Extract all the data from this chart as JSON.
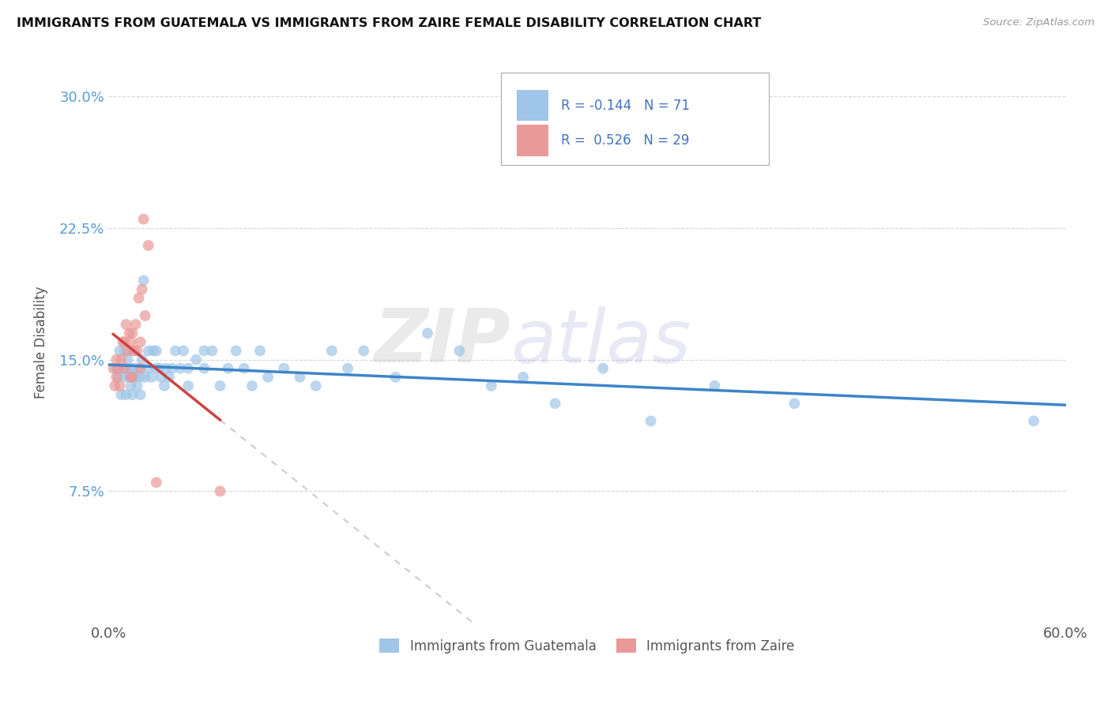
{
  "title": "IMMIGRANTS FROM GUATEMALA VS IMMIGRANTS FROM ZAIRE FEMALE DISABILITY CORRELATION CHART",
  "source": "Source: ZipAtlas.com",
  "ylabel": "Female Disability",
  "xlim": [
    0.0,
    0.6
  ],
  "ylim": [
    0.0,
    0.32
  ],
  "R_guatemala": -0.144,
  "N_guatemala": 71,
  "R_zaire": 0.526,
  "N_zaire": 29,
  "color_guatemala": "#9fc5e8",
  "color_zaire": "#ea9999",
  "trendline_color_guatemala": "#3d85c8",
  "trendline_color_zaire": "#cc4444",
  "trendline_dashed_color": "#cccccc",
  "watermark_zip": "ZIP",
  "watermark_atlas": "atlas",
  "legend_labels": [
    "Immigrants from Guatemala",
    "Immigrants from Zaire"
  ],
  "guatemala_x": [
    0.005,
    0.006,
    0.007,
    0.008,
    0.009,
    0.01,
    0.01,
    0.01,
    0.011,
    0.012,
    0.012,
    0.013,
    0.014,
    0.014,
    0.015,
    0.015,
    0.015,
    0.016,
    0.017,
    0.018,
    0.019,
    0.02,
    0.02,
    0.021,
    0.022,
    0.023,
    0.025,
    0.025,
    0.027,
    0.028,
    0.03,
    0.03,
    0.032,
    0.033,
    0.035,
    0.036,
    0.038,
    0.04,
    0.042,
    0.045,
    0.047,
    0.05,
    0.05,
    0.055,
    0.06,
    0.06,
    0.065,
    0.07,
    0.075,
    0.08,
    0.085,
    0.09,
    0.095,
    0.1,
    0.11,
    0.12,
    0.13,
    0.14,
    0.15,
    0.16,
    0.18,
    0.2,
    0.22,
    0.24,
    0.26,
    0.28,
    0.31,
    0.34,
    0.38,
    0.43,
    0.58
  ],
  "guatemala_y": [
    0.145,
    0.14,
    0.155,
    0.13,
    0.145,
    0.14,
    0.145,
    0.155,
    0.13,
    0.145,
    0.15,
    0.14,
    0.135,
    0.145,
    0.13,
    0.14,
    0.155,
    0.145,
    0.14,
    0.135,
    0.145,
    0.13,
    0.14,
    0.15,
    0.195,
    0.14,
    0.155,
    0.145,
    0.14,
    0.155,
    0.145,
    0.155,
    0.145,
    0.14,
    0.135,
    0.145,
    0.14,
    0.145,
    0.155,
    0.145,
    0.155,
    0.135,
    0.145,
    0.15,
    0.155,
    0.145,
    0.155,
    0.135,
    0.145,
    0.155,
    0.145,
    0.135,
    0.155,
    0.14,
    0.145,
    0.14,
    0.135,
    0.155,
    0.145,
    0.155,
    0.14,
    0.165,
    0.155,
    0.135,
    0.14,
    0.125,
    0.145,
    0.115,
    0.135,
    0.125,
    0.115
  ],
  "zaire_x": [
    0.003,
    0.004,
    0.005,
    0.005,
    0.006,
    0.007,
    0.008,
    0.009,
    0.01,
    0.01,
    0.011,
    0.012,
    0.013,
    0.014,
    0.014,
    0.015,
    0.015,
    0.016,
    0.017,
    0.018,
    0.019,
    0.02,
    0.02,
    0.021,
    0.022,
    0.023,
    0.025,
    0.03,
    0.07
  ],
  "zaire_y": [
    0.145,
    0.135,
    0.14,
    0.15,
    0.145,
    0.135,
    0.15,
    0.16,
    0.145,
    0.16,
    0.17,
    0.155,
    0.165,
    0.14,
    0.16,
    0.14,
    0.165,
    0.155,
    0.17,
    0.155,
    0.185,
    0.145,
    0.16,
    0.19,
    0.23,
    0.175,
    0.215,
    0.08,
    0.075
  ]
}
